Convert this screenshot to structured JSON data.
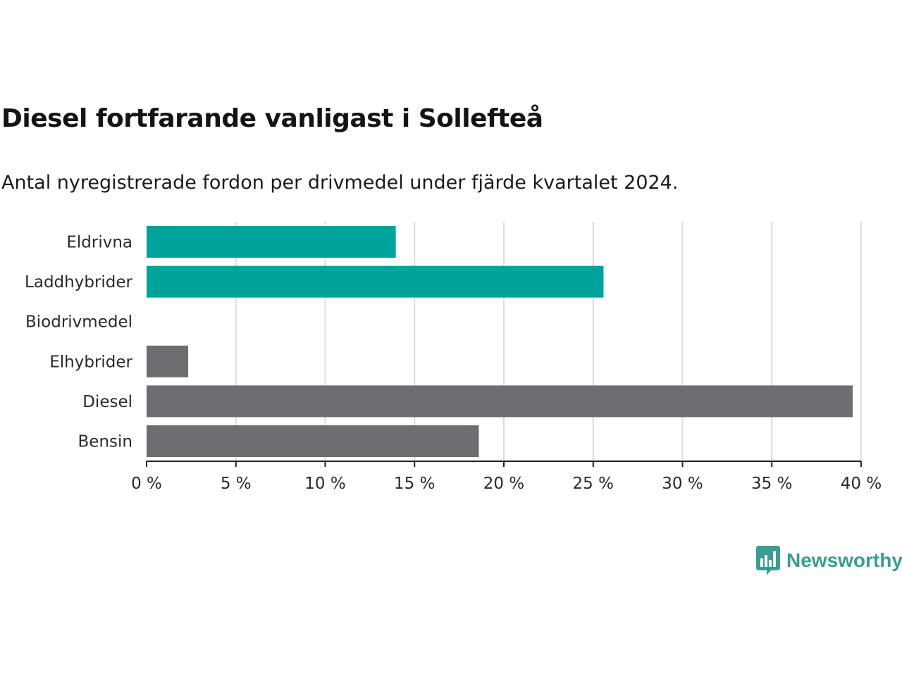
{
  "chart_data": {
    "type": "bar",
    "orientation": "horizontal",
    "title": "Diesel fortfarande vanligast i Sollefteå",
    "subtitle": "Antal nyregistrerade fordon per drivmedel under fjärde kvartalet 2024.",
    "categories": [
      "Eldrivna",
      "Laddhybrider",
      "Biodrivmedel",
      "Elhybrider",
      "Diesel",
      "Bensin"
    ],
    "values": [
      13.95,
      25.58,
      0,
      2.33,
      39.53,
      18.6
    ],
    "colors": [
      "#00a39a",
      "#00a39a",
      "#6d6d72",
      "#6d6d72",
      "#6d6d72",
      "#6d6d72"
    ],
    "xlim": [
      0,
      40
    ],
    "ticks": [
      0,
      5,
      10,
      15,
      20,
      25,
      30,
      35,
      40
    ],
    "tick_labels": [
      "0 %",
      "5 %",
      "10 %",
      "15 %",
      "20 %",
      "25 %",
      "30 %",
      "35 %",
      "40 %"
    ],
    "xlabel": "",
    "ylabel": "",
    "grid": true
  },
  "brand": {
    "name": "Newsworthy",
    "color": "#3a9e8f"
  }
}
